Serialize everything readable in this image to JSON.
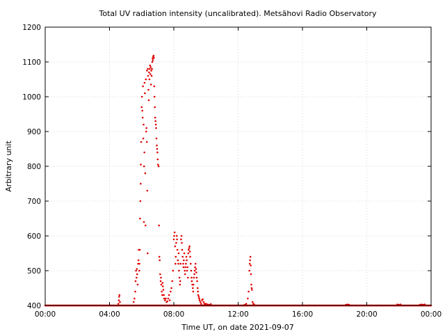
{
  "chart_data": {
    "type": "scatter",
    "title": "Total UV radiation intensity (uncalibrated). Metsähovi Radio Observatory",
    "xlabel": "Time UT, on date 2021-09-07",
    "ylabel": "Arbitrary unit",
    "xlim": [
      0,
      24
    ],
    "ylim": [
      400,
      1200
    ],
    "x_ticks": [
      0,
      4,
      8,
      12,
      16,
      20,
      24
    ],
    "x_tick_labels": [
      "00:00",
      "04:00",
      "08:00",
      "12:00",
      "16:00",
      "20:00",
      "00:00"
    ],
    "y_ticks": [
      400,
      500,
      600,
      700,
      800,
      900,
      1000,
      1100,
      1200
    ],
    "y_tick_labels": [
      "400",
      "500",
      "600",
      "700",
      "800",
      "900",
      "1000",
      "1100",
      "1200"
    ],
    "grid": true,
    "legend": "none",
    "marker_color": "#e00000",
    "baseline": 400,
    "baseline_interval_h": 0.04,
    "series": [
      {
        "x_unit": "hours UT",
        "points": [
          [
            4.55,
            405
          ],
          [
            4.58,
            415
          ],
          [
            4.6,
            425
          ],
          [
            4.62,
            430
          ],
          [
            4.65,
            410
          ],
          [
            5.5,
            410
          ],
          [
            5.55,
            420
          ],
          [
            5.6,
            440
          ],
          [
            5.62,
            470
          ],
          [
            5.65,
            500
          ],
          [
            5.68,
            480
          ],
          [
            5.7,
            505
          ],
          [
            5.72,
            490
          ],
          [
            5.75,
            460
          ],
          [
            5.78,
            520
          ],
          [
            5.8,
            530
          ],
          [
            5.82,
            560
          ],
          [
            5.85,
            500
          ],
          [
            5.86,
            520
          ],
          [
            5.88,
            560
          ],
          [
            5.9,
            650
          ],
          [
            5.92,
            700
          ],
          [
            5.94,
            750
          ],
          [
            5.95,
            805
          ],
          [
            5.97,
            870
          ],
          [
            6.0,
            970
          ],
          [
            6.02,
            1000
          ],
          [
            6.04,
            960
          ],
          [
            6.06,
            940
          ],
          [
            6.08,
            1030
          ],
          [
            6.1,
            880
          ],
          [
            6.12,
            920
          ],
          [
            6.14,
            640
          ],
          [
            6.15,
            800
          ],
          [
            6.17,
            840
          ],
          [
            6.18,
            1040
          ],
          [
            6.2,
            1010
          ],
          [
            6.22,
            780
          ],
          [
            6.24,
            630
          ],
          [
            6.26,
            1050
          ],
          [
            6.28,
            900
          ],
          [
            6.3,
            910
          ],
          [
            6.32,
            870
          ],
          [
            6.33,
            1075
          ],
          [
            6.35,
            730
          ],
          [
            6.37,
            550
          ],
          [
            6.38,
            1080
          ],
          [
            6.4,
            1060
          ],
          [
            6.42,
            1020
          ],
          [
            6.44,
            990
          ],
          [
            6.46,
            1070
          ],
          [
            6.48,
            1050
          ],
          [
            6.5,
            1080
          ],
          [
            6.52,
            1090
          ],
          [
            6.54,
            1065
          ],
          [
            6.56,
            1085
          ],
          [
            6.58,
            1035
          ],
          [
            6.6,
            1075
          ],
          [
            6.62,
            1060
          ],
          [
            6.64,
            1080
          ],
          [
            6.66,
            1100
          ],
          [
            6.68,
            1110
          ],
          [
            6.7,
            1105
          ],
          [
            6.72,
            1115
          ],
          [
            6.74,
            1118
          ],
          [
            6.76,
            1112
          ],
          [
            6.78,
            1030
          ],
          [
            6.8,
            1000
          ],
          [
            6.82,
            970
          ],
          [
            6.84,
            940
          ],
          [
            6.86,
            930
          ],
          [
            6.88,
            920
          ],
          [
            6.9,
            910
          ],
          [
            6.92,
            880
          ],
          [
            6.94,
            860
          ],
          [
            6.96,
            850
          ],
          [
            6.98,
            840
          ],
          [
            7.0,
            820
          ],
          [
            7.02,
            805
          ],
          [
            7.05,
            800
          ],
          [
            7.08,
            630
          ],
          [
            7.1,
            540
          ],
          [
            7.12,
            530
          ],
          [
            7.15,
            490
          ],
          [
            7.18,
            470
          ],
          [
            7.2,
            480
          ],
          [
            7.22,
            460
          ],
          [
            7.25,
            440
          ],
          [
            7.28,
            430
          ],
          [
            7.3,
            465
          ],
          [
            7.32,
            455
          ],
          [
            7.35,
            445
          ],
          [
            7.38,
            430
          ],
          [
            7.4,
            420
          ],
          [
            7.45,
            415
          ],
          [
            7.5,
            420
          ],
          [
            7.55,
            410
          ],
          [
            7.6,
            412
          ],
          [
            7.65,
            420
          ],
          [
            7.7,
            430
          ],
          [
            7.75,
            415
          ],
          [
            7.8,
            440
          ],
          [
            7.85,
            450
          ],
          [
            7.9,
            470
          ],
          [
            7.95,
            500
          ],
          [
            8.0,
            590
          ],
          [
            8.02,
            600
          ],
          [
            8.05,
            610
          ],
          [
            8.08,
            570
          ],
          [
            8.1,
            520
          ],
          [
            8.12,
            540
          ],
          [
            8.15,
            580
          ],
          [
            8.18,
            600
          ],
          [
            8.2,
            590
          ],
          [
            8.22,
            560
          ],
          [
            8.25,
            530
          ],
          [
            8.28,
            520
          ],
          [
            8.3,
            550
          ],
          [
            8.32,
            500
          ],
          [
            8.35,
            480
          ],
          [
            8.38,
            460
          ],
          [
            8.4,
            470
          ],
          [
            8.42,
            520
          ],
          [
            8.45,
            590
          ],
          [
            8.48,
            600
          ],
          [
            8.5,
            580
          ],
          [
            8.52,
            560
          ],
          [
            8.55,
            540
          ],
          [
            8.58,
            520
          ],
          [
            8.6,
            510
          ],
          [
            8.62,
            530
          ],
          [
            8.65,
            550
          ],
          [
            8.68,
            500
          ],
          [
            8.7,
            490
          ],
          [
            8.72,
            510
          ],
          [
            8.75,
            520
          ],
          [
            8.78,
            540
          ],
          [
            8.8,
            530
          ],
          [
            8.82,
            500
          ],
          [
            8.85,
            510
          ],
          [
            8.88,
            480
          ],
          [
            8.9,
            550
          ],
          [
            8.92,
            560
          ],
          [
            8.95,
            565
          ],
          [
            8.98,
            570
          ],
          [
            9.0,
            555
          ],
          [
            9.02,
            540
          ],
          [
            9.05,
            520
          ],
          [
            9.08,
            500
          ],
          [
            9.1,
            480
          ],
          [
            9.12,
            470
          ],
          [
            9.15,
            460
          ],
          [
            9.18,
            450
          ],
          [
            9.2,
            440
          ],
          [
            9.22,
            460
          ],
          [
            9.25,
            480
          ],
          [
            9.28,
            490
          ],
          [
            9.3,
            500
          ],
          [
            9.32,
            510
          ],
          [
            9.35,
            520
          ],
          [
            9.38,
            505
          ],
          [
            9.4,
            495
          ],
          [
            9.42,
            480
          ],
          [
            9.45,
            470
          ],
          [
            9.48,
            450
          ],
          [
            9.5,
            440
          ],
          [
            9.52,
            430
          ],
          [
            9.55,
            425
          ],
          [
            9.58,
            420
          ],
          [
            9.6,
            415
          ],
          [
            9.65,
            410
          ],
          [
            9.7,
            405
          ],
          [
            9.75,
            415
          ],
          [
            9.8,
            418
          ],
          [
            9.85,
            410
          ],
          [
            9.9,
            405
          ],
          [
            9.95,
            402
          ],
          [
            10.0,
            405
          ],
          [
            10.1,
            403
          ],
          [
            10.2,
            402
          ],
          [
            10.3,
            404
          ],
          [
            12.4,
            402
          ],
          [
            12.5,
            405
          ],
          [
            12.6,
            420
          ],
          [
            12.65,
            440
          ],
          [
            12.7,
            500
          ],
          [
            12.72,
            520
          ],
          [
            12.74,
            530
          ],
          [
            12.76,
            540
          ],
          [
            12.78,
            515
          ],
          [
            12.8,
            490
          ],
          [
            12.82,
            460
          ],
          [
            12.84,
            450
          ],
          [
            12.86,
            445
          ],
          [
            12.9,
            410
          ],
          [
            12.95,
            405
          ],
          [
            13.0,
            402
          ],
          [
            18.7,
            402
          ],
          [
            18.8,
            403
          ],
          [
            18.9,
            402
          ],
          [
            21.9,
            403
          ],
          [
            22.0,
            402
          ],
          [
            22.1,
            403
          ],
          [
            23.3,
            402
          ],
          [
            23.4,
            403
          ],
          [
            23.5,
            402
          ],
          [
            23.6,
            403
          ]
        ]
      }
    ]
  }
}
